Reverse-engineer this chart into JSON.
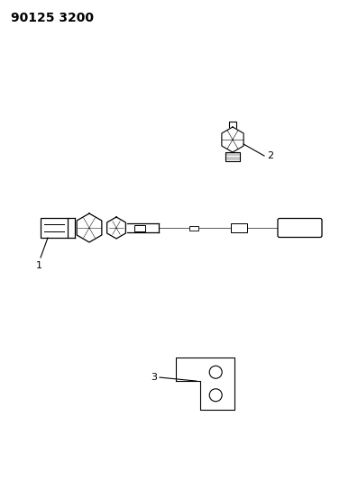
{
  "background_color": "#ffffff",
  "title_text": "90125 3200",
  "title_fontsize": 10,
  "title_fontweight": "bold",
  "fig_width": 3.97,
  "fig_height": 5.33,
  "dpi": 100,
  "line_color": "#000000",
  "part1_label": "1",
  "part2_label": "2",
  "part3_label": "3"
}
